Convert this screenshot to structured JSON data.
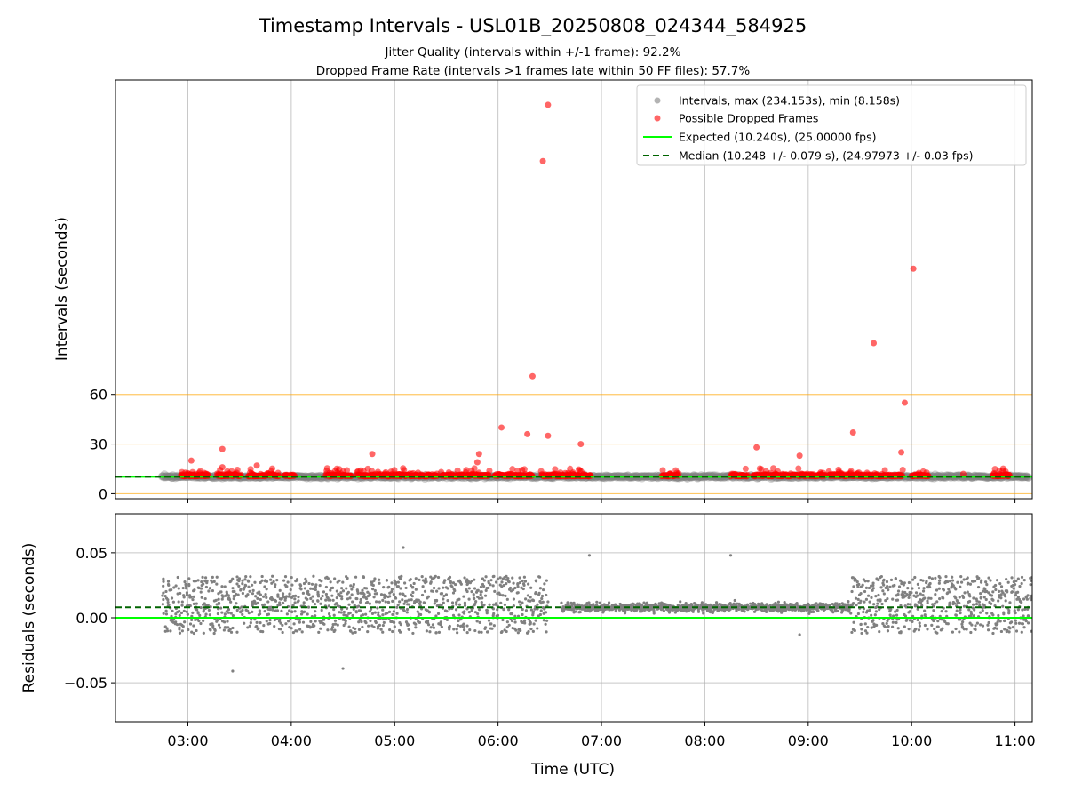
{
  "title": "Timestamp Intervals - USL01B_20250808_024344_584925",
  "subtitle_lines": [
    "Jitter Quality (intervals within +/-1 frame): 92.2%",
    "Dropped Frame Rate (intervals >1 frames late within 50 FF files): 57.7%"
  ],
  "colors": {
    "intervals": "#808080",
    "dropped": "#ff0000",
    "expected": "#00ff00",
    "median": "#006400",
    "threshold": "#ffa500",
    "grid": "#b0b0b0"
  },
  "chart_data": [
    {
      "type": "scatter",
      "panel": "top",
      "ylabel": "Intervals (seconds)",
      "x_axis": {
        "start": "02:18",
        "end": "11:10",
        "ticks": [
          "03:00",
          "04:00",
          "05:00",
          "06:00",
          "07:00",
          "08:00",
          "09:00",
          "10:00",
          "11:00"
        ]
      },
      "ylim": [
        -3,
        250
      ],
      "yticks": [
        0,
        30,
        60
      ],
      "grid": "vertical",
      "legend_position": "top-right",
      "legend": [
        "Intervals, max (234.153s), min (8.158s)",
        "Possible Dropped Frames",
        "Expected (10.240s), (25.00000 fps)",
        "Median (10.248 +/- 0.079 s), (24.97973 +/- 0.03 fps)"
      ],
      "threshold_lines": [
        0,
        30,
        60
      ],
      "expected": 10.24,
      "median": 10.248,
      "nominal_band": {
        "y": 10.24,
        "time_range": [
          "02:45",
          "11:08"
        ]
      },
      "dropped_frame_clusters": [
        [
          "02:56",
          "03:12"
        ],
        [
          "03:17",
          "03:31"
        ],
        [
          "03:35",
          "03:53"
        ],
        [
          "03:56",
          "04:02"
        ],
        [
          "04:20",
          "04:35"
        ],
        [
          "04:38",
          "05:25"
        ],
        [
          "05:27",
          "05:55"
        ],
        [
          "05:58",
          "06:20"
        ],
        [
          "06:25",
          "06:54"
        ],
        [
          "07:35",
          "07:45"
        ],
        [
          "08:15",
          "08:25"
        ],
        [
          "08:28",
          "09:10"
        ],
        [
          "09:12",
          "09:55"
        ],
        [
          "10:00",
          "10:10"
        ],
        [
          "10:47",
          "10:57"
        ]
      ],
      "outliers": [
        {
          "t": "03:02",
          "y": 20
        },
        {
          "t": "03:20",
          "y": 27
        },
        {
          "t": "03:20",
          "y": 16
        },
        {
          "t": "03:40",
          "y": 17
        },
        {
          "t": "04:47",
          "y": 24
        },
        {
          "t": "05:48",
          "y": 19
        },
        {
          "t": "05:49",
          "y": 24
        },
        {
          "t": "06:02",
          "y": 40
        },
        {
          "t": "06:17",
          "y": 36
        },
        {
          "t": "06:20",
          "y": 71
        },
        {
          "t": "06:26",
          "y": 201
        },
        {
          "t": "06:29",
          "y": 235
        },
        {
          "t": "06:29",
          "y": 35
        },
        {
          "t": "06:48",
          "y": 30
        },
        {
          "t": "08:30",
          "y": 28
        },
        {
          "t": "08:55",
          "y": 23
        },
        {
          "t": "09:26",
          "y": 37
        },
        {
          "t": "09:38",
          "y": 91
        },
        {
          "t": "09:56",
          "y": 55
        },
        {
          "t": "09:54",
          "y": 25
        },
        {
          "t": "10:01",
          "y": 136
        },
        {
          "t": "10:30",
          "y": 12
        }
      ]
    },
    {
      "type": "scatter",
      "panel": "bottom",
      "xlabel": "Time (UTC)",
      "ylabel": "Residuals (seconds)",
      "ylim": [
        -0.08,
        0.08
      ],
      "yticks": [
        "−0.05",
        "0.00",
        "0.05"
      ],
      "grid": "both",
      "expected_residual": 0.0,
      "median_residual": 0.008,
      "segments": [
        {
          "time_range": [
            "02:45",
            "06:29"
          ],
          "center": 0.01,
          "spread": 0.02
        },
        {
          "time_range": [
            "06:37",
            "09:25"
          ],
          "center": 0.008,
          "spread": 0.003
        },
        {
          "time_range": [
            "09:25",
            "11:10"
          ],
          "center": 0.01,
          "spread": 0.02
        }
      ],
      "outliers": [
        {
          "t": "06:53",
          "y": 0.048
        },
        {
          "t": "08:15",
          "y": 0.048
        },
        {
          "t": "08:55",
          "y": -0.013
        },
        {
          "t": "03:26",
          "y": -0.041
        },
        {
          "t": "05:05",
          "y": 0.054
        },
        {
          "t": "04:30",
          "y": -0.039
        }
      ]
    }
  ]
}
